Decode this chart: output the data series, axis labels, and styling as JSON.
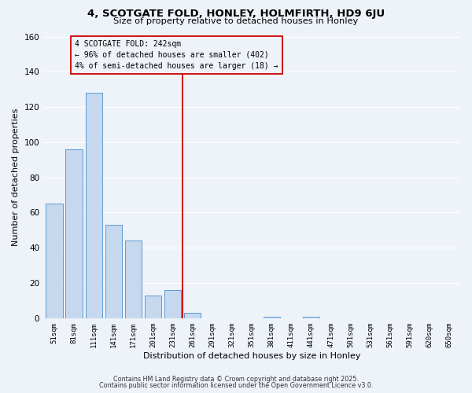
{
  "title1": "4, SCOTGATE FOLD, HONLEY, HOLMFIRTH, HD9 6JU",
  "title2": "Size of property relative to detached houses in Honley",
  "xlabel": "Distribution of detached houses by size in Honley",
  "ylabel": "Number of detached properties",
  "bar_labels": [
    "51sqm",
    "81sqm",
    "111sqm",
    "141sqm",
    "171sqm",
    "201sqm",
    "231sqm",
    "261sqm",
    "291sqm",
    "321sqm",
    "351sqm",
    "381sqm",
    "411sqm",
    "441sqm",
    "471sqm",
    "501sqm",
    "531sqm",
    "561sqm",
    "591sqm",
    "620sqm",
    "650sqm"
  ],
  "bar_values": [
    65,
    96,
    128,
    53,
    44,
    13,
    16,
    3,
    0,
    0,
    0,
    1,
    0,
    1,
    0,
    0,
    0,
    0,
    0,
    0,
    0
  ],
  "bar_color": "#c5d8ee",
  "bar_edge_color": "#5b9bd5",
  "vline_x": 6.5,
  "vline_color": "#cc0000",
  "annotation_title": "4 SCOTGATE FOLD: 242sqm",
  "annotation_line1": "← 96% of detached houses are smaller (402)",
  "annotation_line2": "4% of semi-detached houses are larger (18) →",
  "annotation_box_edge": "#cc0000",
  "ylim": [
    0,
    160
  ],
  "yticks": [
    0,
    20,
    40,
    60,
    80,
    100,
    120,
    140,
    160
  ],
  "footnote1": "Contains HM Land Registry data © Crown copyright and database right 2025.",
  "footnote2": "Contains public sector information licensed under the Open Government Licence v3.0.",
  "background_color": "#eef2f9",
  "grid_color": "#ffffff"
}
